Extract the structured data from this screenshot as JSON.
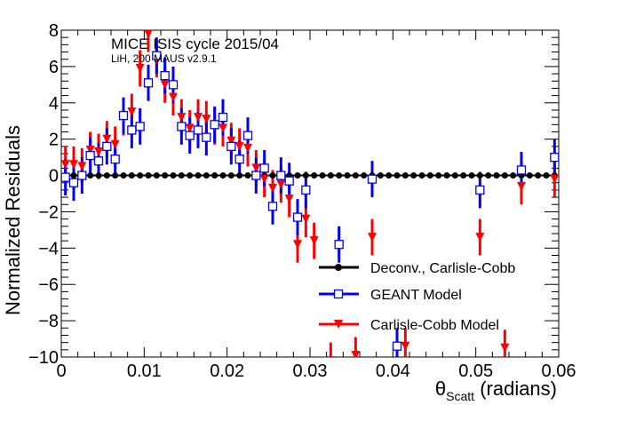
{
  "chart_data": {
    "type": "scatter",
    "xlabel": "θ",
    "xlabel_sub": "Scatt",
    "xlabel_suffix": " (radians)",
    "ylabel": "Normalized Residuals",
    "xlim": [
      0,
      0.06
    ],
    "ylim": [
      -10,
      8
    ],
    "x_ticks": [
      {
        "value": 0,
        "label": "0"
      },
      {
        "value": 0.01,
        "label": "0.01"
      },
      {
        "value": 0.02,
        "label": "0.02"
      },
      {
        "value": 0.03,
        "label": "0.03"
      },
      {
        "value": 0.04,
        "label": "0.04"
      },
      {
        "value": 0.05,
        "label": "0.05"
      },
      {
        "value": 0.06,
        "label": "0.06"
      }
    ],
    "y_ticks": [
      {
        "value": -10,
        "label": "−10"
      },
      {
        "value": -8,
        "label": "−8"
      },
      {
        "value": -6,
        "label": "−6"
      },
      {
        "value": -4,
        "label": "−4"
      },
      {
        "value": -2,
        "label": "−2"
      },
      {
        "value": 0,
        "label": "0"
      },
      {
        "value": 2,
        "label": "2"
      },
      {
        "value": 4,
        "label": "4"
      },
      {
        "value": 6,
        "label": "6"
      },
      {
        "value": 8,
        "label": "8"
      }
    ],
    "annotations": [
      "MICE ISIS cycle 2015/04",
      "LiH, 200 MAUS v2.9.1"
    ],
    "legend_placement": "bottom-right",
    "grid": false,
    "series": [
      {
        "name": "Deconv., Carlisle-Cobb",
        "color": "#000000",
        "marker": "circle-filled",
        "points": [
          {
            "x": 0.0005,
            "y": 0
          },
          {
            "x": 0.0015,
            "y": 0
          },
          {
            "x": 0.0025,
            "y": 0
          },
          {
            "x": 0.0035,
            "y": 0
          },
          {
            "x": 0.0045,
            "y": 0
          },
          {
            "x": 0.0055,
            "y": 0
          },
          {
            "x": 0.0065,
            "y": 0
          },
          {
            "x": 0.0075,
            "y": 0
          },
          {
            "x": 0.0085,
            "y": 0
          },
          {
            "x": 0.0095,
            "y": 0
          },
          {
            "x": 0.0105,
            "y": 0
          },
          {
            "x": 0.0115,
            "y": 0
          },
          {
            "x": 0.0125,
            "y": 0
          },
          {
            "x": 0.0135,
            "y": 0
          },
          {
            "x": 0.0145,
            "y": 0
          },
          {
            "x": 0.0155,
            "y": 0
          },
          {
            "x": 0.0165,
            "y": 0
          },
          {
            "x": 0.0175,
            "y": 0
          },
          {
            "x": 0.0185,
            "y": 0
          },
          {
            "x": 0.0195,
            "y": 0
          },
          {
            "x": 0.0205,
            "y": 0
          },
          {
            "x": 0.0215,
            "y": 0
          },
          {
            "x": 0.0225,
            "y": 0
          },
          {
            "x": 0.0235,
            "y": 0
          },
          {
            "x": 0.0245,
            "y": 0
          },
          {
            "x": 0.0255,
            "y": 0
          },
          {
            "x": 0.0265,
            "y": 0
          },
          {
            "x": 0.0275,
            "y": 0
          },
          {
            "x": 0.0285,
            "y": 0
          },
          {
            "x": 0.0295,
            "y": 0
          },
          {
            "x": 0.0305,
            "y": 0
          },
          {
            "x": 0.0315,
            "y": 0
          },
          {
            "x": 0.0325,
            "y": 0
          },
          {
            "x": 0.0335,
            "y": 0
          },
          {
            "x": 0.0345,
            "y": 0
          },
          {
            "x": 0.0355,
            "y": 0
          },
          {
            "x": 0.0365,
            "y": 0
          },
          {
            "x": 0.0375,
            "y": 0
          },
          {
            "x": 0.0385,
            "y": 0
          },
          {
            "x": 0.0395,
            "y": 0
          },
          {
            "x": 0.0405,
            "y": 0
          },
          {
            "x": 0.0415,
            "y": 0
          },
          {
            "x": 0.0425,
            "y": 0
          },
          {
            "x": 0.0435,
            "y": 0
          },
          {
            "x": 0.0445,
            "y": 0
          },
          {
            "x": 0.0455,
            "y": 0
          },
          {
            "x": 0.0465,
            "y": 0
          },
          {
            "x": 0.0475,
            "y": 0
          },
          {
            "x": 0.0485,
            "y": 0
          },
          {
            "x": 0.0495,
            "y": 0
          },
          {
            "x": 0.0505,
            "y": 0
          },
          {
            "x": 0.0515,
            "y": 0
          },
          {
            "x": 0.0525,
            "y": 0
          },
          {
            "x": 0.0535,
            "y": 0
          },
          {
            "x": 0.0545,
            "y": 0
          },
          {
            "x": 0.0555,
            "y": 0
          },
          {
            "x": 0.0565,
            "y": 0
          },
          {
            "x": 0.0575,
            "y": 0
          },
          {
            "x": 0.0585,
            "y": 0
          },
          {
            "x": 0.0595,
            "y": 0
          }
        ]
      },
      {
        "name": "GEANT Model",
        "color": "#0000ff",
        "marker": "square-open",
        "points": [
          {
            "x": 0.0005,
            "y": -0.1,
            "err": 1.0
          },
          {
            "x": 0.0015,
            "y": -0.4,
            "err": 1.0
          },
          {
            "x": 0.0025,
            "y": 0.0,
            "err": 1.0
          },
          {
            "x": 0.0035,
            "y": 1.1,
            "err": 1.0
          },
          {
            "x": 0.0045,
            "y": 0.8,
            "err": 1.0
          },
          {
            "x": 0.0055,
            "y": 1.6,
            "err": 1.0
          },
          {
            "x": 0.0065,
            "y": 0.9,
            "err": 1.0
          },
          {
            "x": 0.0075,
            "y": 3.3,
            "err": 1.0
          },
          {
            "x": 0.0085,
            "y": 2.5,
            "err": 1.0
          },
          {
            "x": 0.0095,
            "y": 2.7,
            "err": 1.0
          },
          {
            "x": 0.0105,
            "y": 5.1,
            "err": 1.0
          },
          {
            "x": 0.0115,
            "y": 6.6,
            "err": 1.0
          },
          {
            "x": 0.0125,
            "y": 5.5,
            "err": 1.0
          },
          {
            "x": 0.0135,
            "y": 5.0,
            "err": 1.0
          },
          {
            "x": 0.0145,
            "y": 2.7,
            "err": 1.0
          },
          {
            "x": 0.0155,
            "y": 2.2,
            "err": 1.0
          },
          {
            "x": 0.0165,
            "y": 2.5,
            "err": 1.0
          },
          {
            "x": 0.0175,
            "y": 2.1,
            "err": 1.0
          },
          {
            "x": 0.0185,
            "y": 2.8,
            "err": 1.0
          },
          {
            "x": 0.0195,
            "y": 3.2,
            "err": 1.0
          },
          {
            "x": 0.0205,
            "y": 1.6,
            "err": 1.0
          },
          {
            "x": 0.0215,
            "y": 0.9,
            "err": 1.0
          },
          {
            "x": 0.0225,
            "y": 2.2,
            "err": 1.0
          },
          {
            "x": 0.0235,
            "y": 0.0,
            "err": 1.0
          },
          {
            "x": 0.0245,
            "y": 0.4,
            "err": 1.0
          },
          {
            "x": 0.0255,
            "y": -1.7,
            "err": 1.0
          },
          {
            "x": 0.0265,
            "y": 0.0,
            "err": 1.0
          },
          {
            "x": 0.0275,
            "y": -0.3,
            "err": 1.0
          },
          {
            "x": 0.0285,
            "y": -2.3,
            "err": 1.0
          },
          {
            "x": 0.0295,
            "y": -0.8,
            "err": 1.0
          },
          {
            "x": 0.0335,
            "y": -3.8,
            "err": 1.0
          },
          {
            "x": 0.0375,
            "y": -0.2,
            "err": 1.0
          },
          {
            "x": 0.0405,
            "y": -9.4,
            "err": 1.0
          },
          {
            "x": 0.0505,
            "y": -0.8,
            "err": 1.0
          },
          {
            "x": 0.0555,
            "y": 0.3,
            "err": 1.0
          },
          {
            "x": 0.0595,
            "y": 1.0,
            "err": 1.0
          }
        ]
      },
      {
        "name": "Carlisle-Cobb Model",
        "color": "#ff0000",
        "marker": "triangle-down-filled",
        "points": [
          {
            "x": 0.0005,
            "y": 0.6,
            "err": 1.0
          },
          {
            "x": 0.0015,
            "y": 0.6,
            "err": 1.0
          },
          {
            "x": 0.0025,
            "y": 0.5,
            "err": 1.0
          },
          {
            "x": 0.0035,
            "y": 1.4,
            "err": 1.0
          },
          {
            "x": 0.0045,
            "y": 1.3,
            "err": 1.0
          },
          {
            "x": 0.0055,
            "y": 2.0,
            "err": 1.0
          },
          {
            "x": 0.0065,
            "y": 1.7,
            "err": 1.0
          },
          {
            "x": 0.0075,
            "y": 3.2,
            "err": 1.0
          },
          {
            "x": 0.0085,
            "y": 3.5,
            "err": 1.0
          },
          {
            "x": 0.0095,
            "y": 5.9,
            "err": 1.0
          },
          {
            "x": 0.0105,
            "y": 7.8,
            "err": 1.0
          },
          {
            "x": 0.0115,
            "y": 6.4,
            "err": 1.0
          },
          {
            "x": 0.0125,
            "y": 5.0,
            "err": 1.0
          },
          {
            "x": 0.0135,
            "y": 4.3,
            "err": 1.0
          },
          {
            "x": 0.0145,
            "y": 3.2,
            "err": 1.0
          },
          {
            "x": 0.0155,
            "y": 2.6,
            "err": 1.0
          },
          {
            "x": 0.0165,
            "y": 3.2,
            "err": 1.0
          },
          {
            "x": 0.0175,
            "y": 3.1,
            "err": 1.0
          },
          {
            "x": 0.0185,
            "y": 2.7,
            "err": 1.0
          },
          {
            "x": 0.0195,
            "y": 2.6,
            "err": 1.0
          },
          {
            "x": 0.0205,
            "y": 1.9,
            "err": 1.0
          },
          {
            "x": 0.0215,
            "y": 1.6,
            "err": 1.0
          },
          {
            "x": 0.0225,
            "y": 1.5,
            "err": 1.0
          },
          {
            "x": 0.0235,
            "y": 0.4,
            "err": 1.0
          },
          {
            "x": 0.0245,
            "y": -0.2,
            "err": 1.0
          },
          {
            "x": 0.0255,
            "y": -0.7,
            "err": 1.0
          },
          {
            "x": 0.0265,
            "y": -0.5,
            "err": 1.0
          },
          {
            "x": 0.0275,
            "y": -1.3,
            "err": 1.0
          },
          {
            "x": 0.0285,
            "y": -3.8,
            "err": 1.0
          },
          {
            "x": 0.0295,
            "y": -2.4,
            "err": 1.0
          },
          {
            "x": 0.0305,
            "y": -3.6,
            "err": 1.0
          },
          {
            "x": 0.0325,
            "y": -10.2,
            "err": 1.0
          },
          {
            "x": 0.0355,
            "y": -9.9,
            "err": 1.0
          },
          {
            "x": 0.0375,
            "y": -3.4,
            "err": 1.0
          },
          {
            "x": 0.0415,
            "y": -9.4,
            "err": 1.0
          },
          {
            "x": 0.0505,
            "y": -3.4,
            "err": 1.0
          },
          {
            "x": 0.0535,
            "y": -9.5,
            "err": 1.0
          },
          {
            "x": 0.0555,
            "y": -0.6,
            "err": 1.0
          },
          {
            "x": 0.0595,
            "y": -0.2,
            "err": 1.0
          }
        ]
      }
    ]
  }
}
